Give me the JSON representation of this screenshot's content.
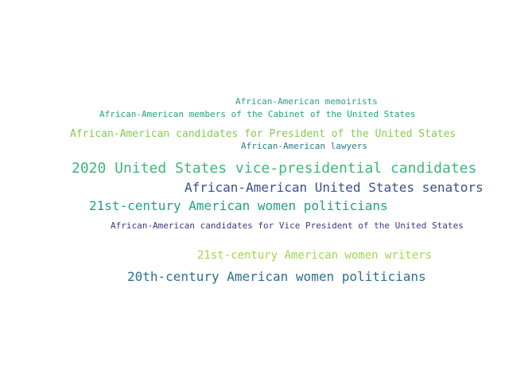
{
  "words": [
    {
      "text": "African-American memoirists",
      "color": "#2a9d8f"
    },
    {
      "text": "African-American members of the Cabinet of the United States",
      "color": "#21a37f"
    },
    {
      "text": "African-American candidates for President of the United States",
      "color": "#86cc4b"
    },
    {
      "text": "African-American lawyers",
      "color": "#2a7b8e"
    },
    {
      "text": "2020 United States vice-presidential candidates",
      "color": "#3cb878"
    },
    {
      "text": "African-American United States senators",
      "color": "#3b4f8a"
    },
    {
      "text": "21st-century American women politicians",
      "color": "#1fa187"
    },
    {
      "text": "African-American candidates for Vice President of the United States",
      "color": "#47337f"
    },
    {
      "text": "21st-century American women writers",
      "color": "#9fd94a"
    },
    {
      "text": "20th-century American women politicians",
      "color": "#2f6f8f"
    }
  ]
}
